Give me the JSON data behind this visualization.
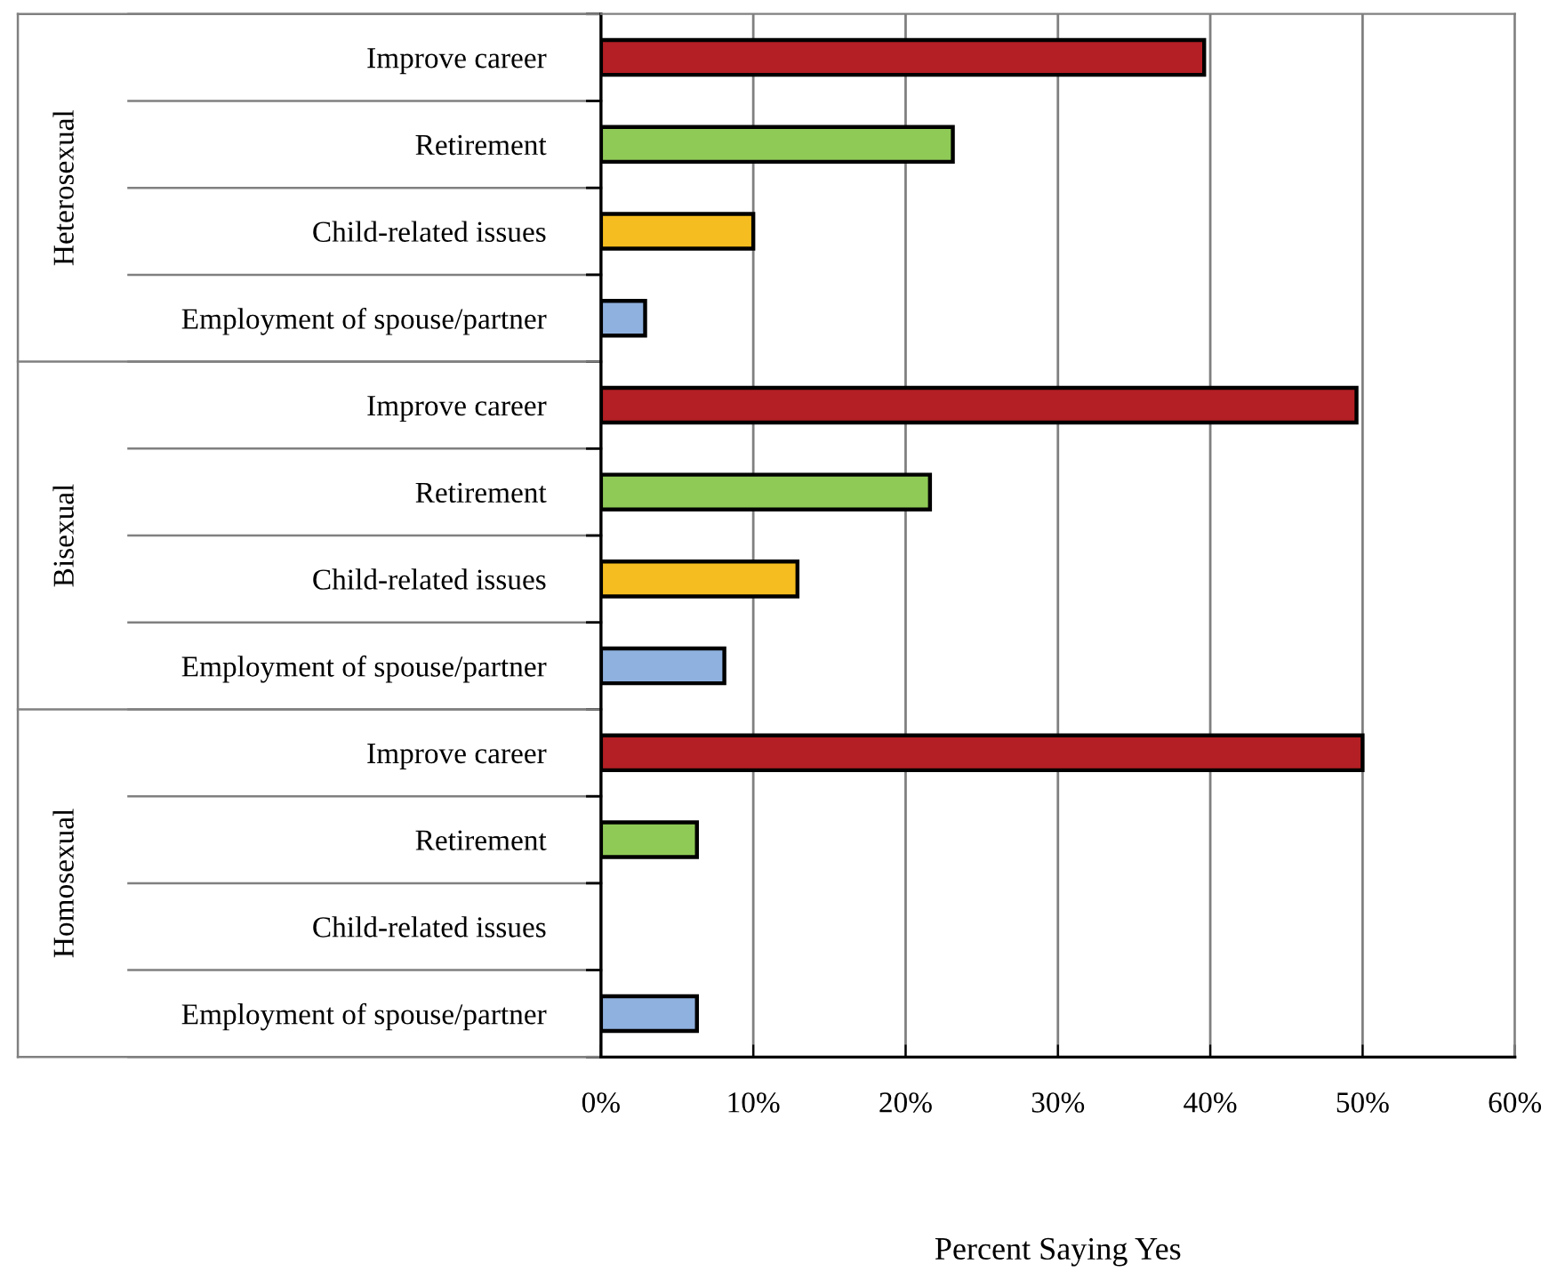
{
  "chart_data": {
    "type": "bar",
    "orientation": "horizontal",
    "categories": [
      "Improve career",
      "Retirement",
      "Child-related issues",
      "Employment of spouse/partner",
      "Improve career",
      "Retirement",
      "Child-related issues",
      "Employment of spouse/partner",
      "Improve career",
      "Retirement",
      "Child-related issues",
      "Employment of spouse/partner"
    ],
    "values": [
      39.6,
      23.1,
      10.0,
      2.9,
      49.6,
      21.6,
      12.9,
      8.1,
      50.0,
      6.3,
      null,
      6.3
    ],
    "colors": [
      "#b31f24",
      "#8fca57",
      "#f5bd1f",
      "#8fb1df",
      "#b31f24",
      "#8fca57",
      "#f5bd1f",
      "#8fb1df",
      "#b31f24",
      "#8fca57",
      "#f5bd1f",
      "#8fb1df"
    ],
    "xlabel": "Percent Saying Yes",
    "xlim": [
      0,
      60
    ],
    "xticks": [
      {
        "value": 0,
        "label": "0%"
      },
      {
        "value": 10,
        "label": "10%"
      },
      {
        "value": 20,
        "label": "20%"
      },
      {
        "value": 30,
        "label": "30%"
      },
      {
        "value": 40,
        "label": "40%"
      },
      {
        "value": 50,
        "label": "50%"
      },
      {
        "value": 60,
        "label": "60%"
      }
    ],
    "grid": "x",
    "annotations": [
      "Heterosexual",
      "Bisexual",
      "Homosexual"
    ]
  }
}
